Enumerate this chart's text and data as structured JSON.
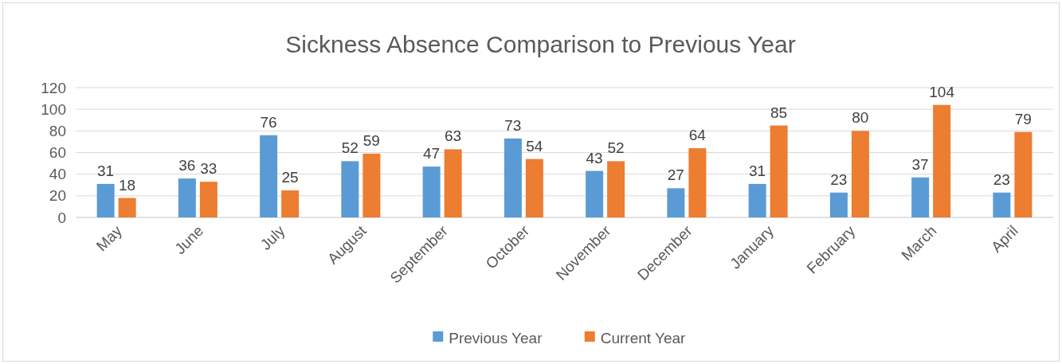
{
  "chart_data": {
    "type": "bar",
    "title": "Sickness Absence Comparison to Previous Year",
    "categories": [
      "May",
      "June",
      "July",
      "August",
      "September",
      "October",
      "November",
      "December",
      "January",
      "February",
      "March",
      "April"
    ],
    "series": [
      {
        "name": "Previous Year",
        "color": "#5b9bd5",
        "values": [
          31,
          36,
          76,
          52,
          47,
          73,
          43,
          27,
          31,
          23,
          37,
          23
        ]
      },
      {
        "name": "Current Year",
        "color": "#ed7d31",
        "values": [
          18,
          33,
          25,
          59,
          63,
          54,
          52,
          64,
          85,
          80,
          104,
          79
        ]
      }
    ],
    "ylim": [
      0,
      120
    ],
    "yticks": [
      0,
      20,
      40,
      60,
      80,
      100,
      120
    ],
    "grid": "y",
    "legend": "bottom",
    "data_labels": true
  }
}
